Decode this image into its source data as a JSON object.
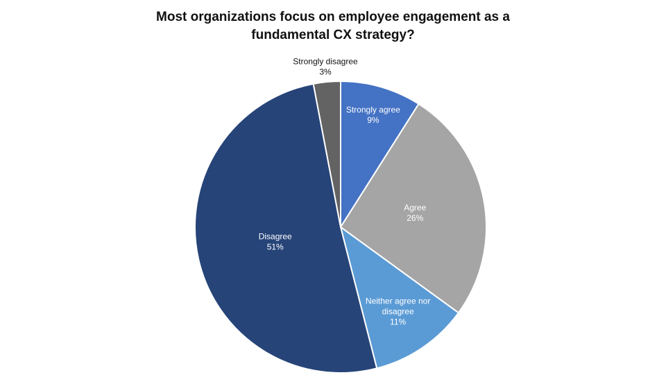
{
  "chart_data": {
    "type": "pie",
    "title_lines": [
      "Most organizations focus on employee engagement as a",
      "fundamental CX strategy?"
    ],
    "start": "top",
    "direction": "clockwise",
    "slices": [
      {
        "label": "Strongly agree",
        "value": 9,
        "display": "9%",
        "color": "#4472C4",
        "label_color": "#ffffff"
      },
      {
        "label": "Agree",
        "value": 26,
        "display": "26%",
        "color": "#A5A5A5",
        "label_color": "#ffffff"
      },
      {
        "label": "Neither agree nor disagree",
        "label_lines": [
          "Neither agree nor",
          "disagree"
        ],
        "value": 11,
        "display": "11%",
        "color": "#5B9BD5",
        "label_color": "#ffffff"
      },
      {
        "label": "Disagree",
        "value": 51,
        "display": "51%",
        "color": "#264478",
        "label_color": "#ffffff"
      },
      {
        "label": "Strongly disagree",
        "value": 3,
        "display": "3%",
        "color": "#636363",
        "label_color": "#111111"
      }
    ]
  }
}
